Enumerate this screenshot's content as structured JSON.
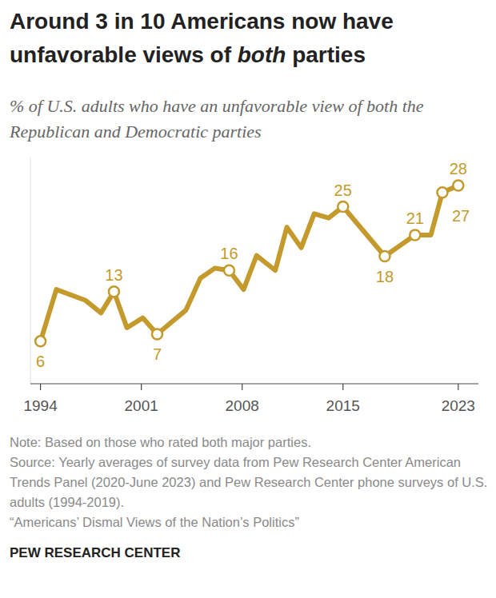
{
  "chart_data": {
    "type": "line",
    "title": "Around 3 in 10 Americans now have unfavorable views of both parties",
    "title_emphasis": "both",
    "subtitle": "% of U.S. adults who have an unfavorable view of both the Republican and Democratic parties",
    "notes": [
      "Note: Based on those who rated both major parties.",
      "Source: Yearly averages of survey data from Pew Research Center American Trends Panel (2020-June 2023) and Pew Research Center phone surveys of U.S. adults (1994-2019).",
      "“Americans’ Dismal Views of the Nation’s Politics”"
    ],
    "footer": "PEW RESEARCH CENTER",
    "x": [
      1994.0,
      1995.1,
      1997.1,
      1998.2,
      1999.1,
      2000.0,
      2001.1,
      2002.1,
      2004.1,
      2005.1,
      2006.1,
      2007.1,
      2008.1,
      2009.0,
      2010.3,
      2011.1,
      2012.1,
      2013.0,
      2014.0,
      2015.0,
      2017.9,
      2020.0,
      2021.1,
      2021.9,
      2023.0
    ],
    "values": [
      6,
      13.3,
      11.8,
      10,
      13,
      7.9,
      9.3,
      7,
      10.4,
      14.9,
      16.3,
      16,
      13.3,
      18.1,
      16,
      22.1,
      19.2,
      24,
      23.4,
      25,
      18,
      21,
      21,
      27,
      28
    ],
    "value_labels": [
      "6",
      null,
      null,
      null,
      "13",
      null,
      null,
      "7",
      null,
      null,
      null,
      "16",
      null,
      null,
      null,
      null,
      null,
      null,
      null,
      "25",
      "18",
      "21",
      null,
      "27",
      "28"
    ],
    "color": "#c49a2c",
    "xlim": [
      1993.3,
      2024.4
    ],
    "xticks": [
      1994,
      2001,
      2008,
      2015,
      2023
    ],
    "ylim": [
      0,
      32
    ],
    "yticks": [],
    "tick_labels": "x",
    "grid": false,
    "marker": "circle",
    "line_style": "solid"
  }
}
